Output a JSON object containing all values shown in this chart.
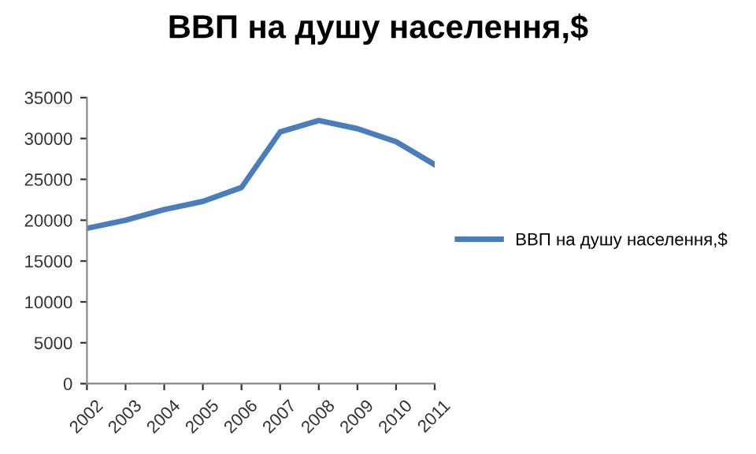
{
  "chart_data": {
    "type": "line",
    "title": "ВВП на душу населення,$",
    "categories": [
      "2002",
      "2003",
      "2004",
      "2005",
      "2006",
      "2007",
      "2008",
      "2009",
      "2010",
      "2011"
    ],
    "series": [
      {
        "name": "ВВП на душу населення,$",
        "color": "#4a7ebb",
        "values": [
          19000,
          20000,
          21300,
          22300,
          24000,
          30800,
          32200,
          31200,
          29600,
          26800
        ]
      }
    ],
    "ylim": [
      0,
      35000
    ],
    "yticks": [
      0,
      5000,
      10000,
      15000,
      20000,
      25000,
      30000,
      35000
    ],
    "grid": false,
    "legend": "right",
    "marker": "none",
    "line_style": "solid"
  }
}
